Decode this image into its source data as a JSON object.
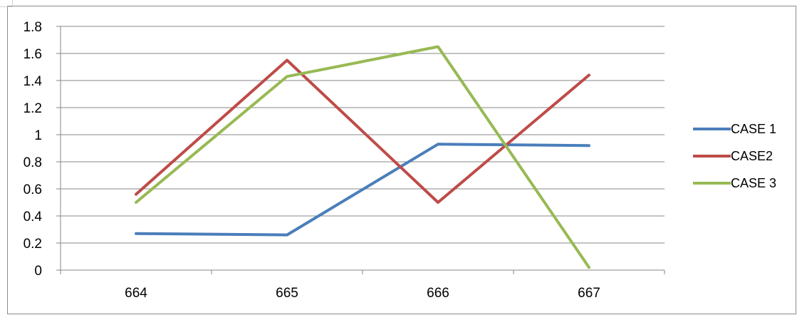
{
  "chart_data": {
    "type": "line",
    "title": "",
    "xlabel": "",
    "ylabel": "",
    "categories": [
      "664",
      "665",
      "666",
      "667"
    ],
    "y_ticks": [
      "0",
      "0.2",
      "0.4",
      "0.6",
      "0.8",
      "1",
      "1.2",
      "1.4",
      "1.6",
      "1.8"
    ],
    "ylim": [
      0,
      1.8
    ],
    "grid": "horizontal",
    "legend_position": "right",
    "series": [
      {
        "name": "CASE 1",
        "color": "#4a7ebb",
        "values": [
          0.27,
          0.26,
          0.93,
          0.92
        ]
      },
      {
        "name": "CASE2",
        "color": "#be4b48",
        "values": [
          0.56,
          1.55,
          0.5,
          1.44
        ]
      },
      {
        "name": "CASE 3",
        "color": "#98b954",
        "values": [
          0.5,
          1.43,
          1.65,
          0.02
        ]
      }
    ]
  }
}
